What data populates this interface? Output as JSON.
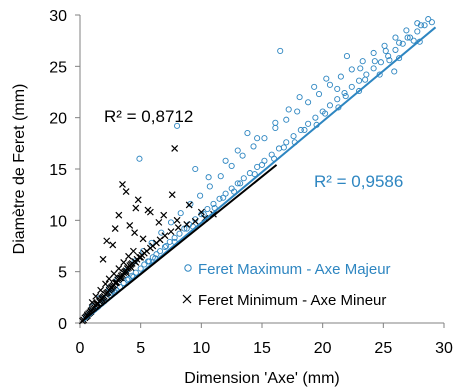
{
  "chart_data": {
    "type": "scatter",
    "title": "",
    "xlabel": "Dimension 'Axe' (mm)",
    "ylabel": "Diamètre de Feret  (mm)",
    "xlim": [
      0,
      30
    ],
    "ylim": [
      0,
      30
    ],
    "xticks": [
      "0",
      "5",
      "10",
      "15",
      "20",
      "25",
      "30"
    ],
    "yticks": [
      "0",
      "5",
      "10",
      "15",
      "20",
      "25",
      "30"
    ],
    "grid": false,
    "legend_position": "bottom-right",
    "series": [
      {
        "name": "Feret Maximum - Axe Majeur",
        "marker": "circle-open",
        "color": "#2e86c1",
        "r2_label": "R² = 0,9586",
        "trendline": [
          [
            0.3,
            0.2
          ],
          [
            29.3,
            28.8
          ]
        ],
        "x": [
          0.5,
          0.8,
          1.0,
          1.2,
          1.5,
          1.8,
          2.0,
          2.2,
          2.5,
          2.8,
          3.0,
          3.3,
          3.6,
          4.0,
          4.3,
          4.6,
          5.0,
          5.3,
          5.6,
          6.0,
          6.3,
          6.6,
          7.0,
          7.4,
          7.8,
          8.2,
          8.6,
          9.0,
          9.5,
          10.0,
          10.5,
          11.0,
          11.5,
          12.0,
          12.5,
          13.0,
          13.5,
          14.0,
          14.6,
          15.2,
          15.8,
          16.4,
          17.0,
          17.6,
          18.2,
          18.8,
          19.4,
          20.0,
          20.6,
          21.2,
          21.8,
          22.4,
          23.0,
          23.6,
          24.2,
          24.8,
          25.4,
          26.0,
          26.6,
          27.2,
          27.8,
          28.4,
          29.0,
          1.0,
          1.6,
          2.4,
          3.1,
          3.8,
          4.5,
          5.2,
          5.9,
          6.7,
          7.5,
          8.3,
          9.1,
          9.9,
          10.7,
          11.6,
          12.5,
          13.4,
          14.3,
          15.2,
          16.1,
          17.0,
          17.9,
          18.8,
          19.7,
          20.6,
          21.5,
          22.4,
          23.3,
          24.2,
          25.1,
          26.0,
          26.9,
          27.8,
          4.9,
          8.0,
          9.5,
          10.6,
          12.0,
          13.0,
          14.6,
          16.1,
          16.5,
          17.2,
          18.1,
          19.3,
          20.3,
          21.2,
          22.0,
          23.1,
          24.3,
          25.2,
          26.3,
          27.0,
          28.1,
          28.7,
          13.8,
          25.9,
          2.6,
          3.9,
          5.7,
          7.1,
          8.8,
          10.2,
          11.8,
          13.2,
          15.0,
          16.8,
          18.5,
          20.2,
          21.9,
          23.5,
          25.5,
          27.5,
          1.4,
          2.9,
          4.4,
          6.2,
          7.8,
          9.3,
          11.1,
          12.7,
          14.4,
          16.0,
          17.7,
          19.5,
          21.3,
          23.0,
          24.7,
          26.3,
          28.0
        ],
        "y": [
          0.6,
          0.9,
          1.1,
          1.3,
          1.6,
          1.9,
          2.1,
          2.4,
          2.7,
          3.0,
          3.2,
          3.5,
          3.9,
          4.3,
          4.6,
          4.9,
          5.3,
          5.7,
          6.0,
          6.4,
          6.7,
          7.0,
          7.4,
          7.9,
          8.3,
          8.7,
          9.2,
          9.6,
          10.1,
          10.6,
          11.1,
          11.6,
          12.1,
          12.6,
          13.1,
          13.6,
          14.1,
          14.6,
          15.2,
          15.8,
          16.4,
          17.0,
          17.6,
          18.2,
          18.8,
          19.4,
          20.0,
          20.6,
          21.2,
          21.8,
          22.4,
          23.0,
          23.6,
          24.2,
          24.8,
          25.4,
          26.0,
          26.6,
          27.2,
          27.8,
          28.4,
          29.0,
          29.3,
          1.6,
          2.4,
          3.4,
          4.3,
          5.1,
          6.0,
          7.0,
          7.8,
          8.8,
          9.8,
          10.7,
          11.6,
          12.4,
          13.3,
          14.3,
          15.3,
          16.3,
          17.2,
          18.0,
          19.0,
          19.8,
          20.6,
          21.5,
          22.3,
          23.2,
          24.0,
          24.7,
          25.5,
          26.3,
          27.0,
          27.8,
          28.5,
          29.2,
          16.0,
          19.2,
          15.0,
          14.2,
          15.8,
          16.8,
          18.0,
          19.5,
          26.5,
          20.8,
          22.0,
          23.0,
          23.8,
          22.8,
          26.0,
          24.8,
          25.5,
          26.5,
          27.3,
          27.8,
          29.0,
          29.6,
          18.5,
          24.5,
          2.9,
          4.2,
          6.0,
          7.5,
          9.2,
          10.6,
          12.2,
          13.6,
          15.4,
          17.1,
          18.8,
          20.4,
          22.1,
          23.7,
          25.6,
          27.5,
          1.5,
          3.0,
          4.5,
          6.3,
          7.9,
          9.4,
          11.2,
          12.8,
          14.5,
          16.0,
          17.6,
          19.3,
          21.0,
          22.6,
          24.2,
          25.8,
          27.4
        ]
      },
      {
        "name": "Feret Minimum - Axe Mineur",
        "marker": "x",
        "color": "#000000",
        "r2_label": "R² = 0,8712",
        "trendline": [
          [
            0.1,
            0.1
          ],
          [
            16.2,
            15.4
          ]
        ],
        "x": [
          0.2,
          0.3,
          0.4,
          0.5,
          0.6,
          0.7,
          0.8,
          0.9,
          1.0,
          1.1,
          1.2,
          1.3,
          1.4,
          1.5,
          1.6,
          1.7,
          1.8,
          1.9,
          2.0,
          2.1,
          2.2,
          2.3,
          2.4,
          2.5,
          2.6,
          2.7,
          2.8,
          2.9,
          3.0,
          3.1,
          3.2,
          3.3,
          3.4,
          3.5,
          3.6,
          3.7,
          3.8,
          3.9,
          4.0,
          4.1,
          4.2,
          4.3,
          4.5,
          4.7,
          4.9,
          5.1,
          5.3,
          5.5,
          5.8,
          6.0,
          6.3,
          6.6,
          7.0,
          7.5,
          8.1,
          8.8,
          9.5,
          10.3,
          11.0,
          1.0,
          1.3,
          1.7,
          2.1,
          2.4,
          2.8,
          3.2,
          3.6,
          4.0,
          4.4,
          0.6,
          0.9,
          1.4,
          1.8,
          2.2,
          2.6,
          3.0,
          3.4,
          3.8,
          4.2,
          4.6,
          5.0,
          3.5,
          3.8,
          4.6,
          5.8,
          6.9,
          8.0,
          7.8,
          2.2,
          2.9,
          4.8,
          5.6,
          6.5,
          7.6,
          9.0,
          10.0,
          3.2,
          4.1,
          4.5,
          5.2,
          2.7,
          1.9
        ],
        "y": [
          0.2,
          0.3,
          0.5,
          0.6,
          0.7,
          0.9,
          1.0,
          1.1,
          1.3,
          1.4,
          1.5,
          1.7,
          1.8,
          1.9,
          2.1,
          2.2,
          2.3,
          2.5,
          2.6,
          2.8,
          2.9,
          3.0,
          3.2,
          3.3,
          3.5,
          3.6,
          3.7,
          3.9,
          4.0,
          4.2,
          4.3,
          4.4,
          4.6,
          4.7,
          4.9,
          5.0,
          5.1,
          5.3,
          5.4,
          5.6,
          5.7,
          5.8,
          6.0,
          6.2,
          6.4,
          6.6,
          6.8,
          7.0,
          7.3,
          7.5,
          7.8,
          8.1,
          8.5,
          8.9,
          9.3,
          9.6,
          9.9,
          10.2,
          10.6,
          2.0,
          2.6,
          3.2,
          3.8,
          4.3,
          4.8,
          5.3,
          5.9,
          6.5,
          7.0,
          0.8,
          1.2,
          1.9,
          2.4,
          2.9,
          3.4,
          3.9,
          4.4,
          4.9,
          5.4,
          5.9,
          6.4,
          13.5,
          12.8,
          11.2,
          10.8,
          10.5,
          10.0,
          17.0,
          8.0,
          9.2,
          12.0,
          11.0,
          9.8,
          12.5,
          11.5,
          10.8,
          10.5,
          9.5,
          8.8,
          8.2,
          7.6,
          6.2
        ]
      }
    ]
  }
}
